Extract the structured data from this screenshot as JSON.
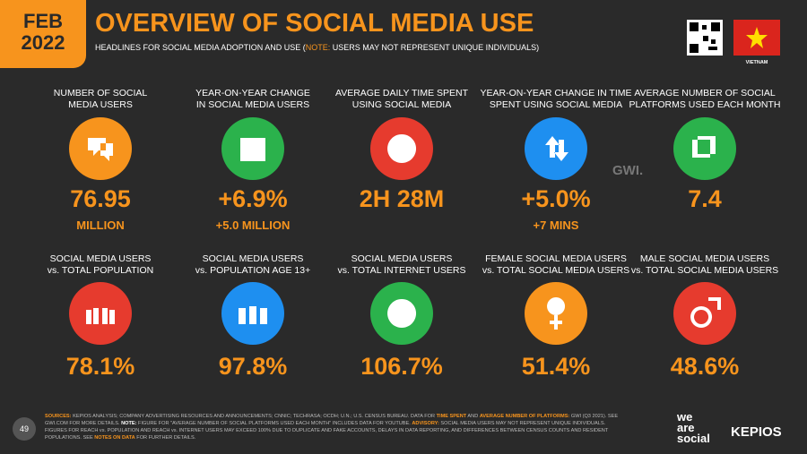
{
  "header": {
    "badge_month": "FEB",
    "badge_year": "2022",
    "title": "OVERVIEW OF SOCIAL MEDIA USE",
    "subtitle": [
      {
        "text": "HEADLINES FOR SOCIAL MEDIA ADOPTION AND USE (",
        "color": "#ffffff"
      },
      {
        "text": "NOTE:",
        "color": "#f7941d"
      },
      {
        "text": " USERS MAY NOT REPRESENT UNIQUE INDIVIDUALS)",
        "color": "#ffffff"
      }
    ],
    "country": "VIETNAM"
  },
  "stats": [
    {
      "label": [
        "NUMBER OF SOCIAL",
        "MEDIA USERS"
      ],
      "value": "76.95",
      "sub": "MILLION",
      "color": "#f7941d"
    },
    {
      "label": [
        "YEAR-ON-YEAR CHANGE",
        "IN SOCIAL MEDIA USERS"
      ],
      "value": "+6.9%",
      "sub": "+5.0 MILLION",
      "color": "#2bb24c"
    },
    {
      "label": [
        "AVERAGE DAILY TIME SPENT",
        "USING SOCIAL MEDIA"
      ],
      "value": "2H 28M",
      "color": "#e63b2e"
    },
    {
      "label": [
        "YEAR-ON-YEAR CHANGE IN TIME",
        "SPENT USING SOCIAL MEDIA"
      ],
      "value": "+5.0%",
      "sub": "+7 MINS",
      "color": "#1e8ff0"
    },
    {
      "label": [
        "AVERAGE NUMBER OF SOCIAL",
        "PLATFORMS USED EACH MONTH"
      ],
      "value": "7.4",
      "color": "#2bb24c"
    },
    {
      "label": [
        "SOCIAL MEDIA USERS",
        "vs. TOTAL POPULATION"
      ],
      "value": "78.1%",
      "color": "#e63b2e"
    },
    {
      "label": [
        "SOCIAL MEDIA USERS",
        "vs. POPULATION AGE 13+"
      ],
      "value": "97.8%",
      "color": "#1e8ff0"
    },
    {
      "label": [
        "SOCIAL MEDIA USERS",
        "vs. TOTAL INTERNET USERS"
      ],
      "value": "106.7%",
      "color": "#2bb24c"
    },
    {
      "label": [
        "FEMALE SOCIAL MEDIA USERS",
        "vs. TOTAL SOCIAL MEDIA USERS"
      ],
      "value": "51.4%",
      "color": "#f7941d"
    },
    {
      "label": [
        "MALE SOCIAL MEDIA USERS",
        "vs. TOTAL SOCIAL MEDIA USERS"
      ],
      "value": "48.6%",
      "color": "#e63b2e"
    }
  ],
  "watermark": "GWI.",
  "footer": {
    "page": "49",
    "sources": [
      {
        "text": "SOURCES:",
        "color": "#f7941d"
      },
      {
        "text": " KEPIOS ANALYSIS; COMPANY ADVERTISING RESOURCES AND ANNOUNCEMENTS; CNNIC; TECHRASA; OCDH; U.N.; U.S. CENSUS BUREAU. DATA FOR ",
        "color": "#bbbbbb"
      },
      {
        "text": "TIME SPENT",
        "color": "#f7941d"
      },
      {
        "text": " AND ",
        "color": "#bbbbbb"
      },
      {
        "text": "AVERAGE NUMBER OF PLATFORMS:",
        "color": "#f7941d"
      },
      {
        "text": " GWI (Q3 2021). SEE GWI.COM FOR MORE DETAILS. ",
        "color": "#bbbbbb"
      },
      {
        "text": "NOTE:",
        "color": "#ffffff"
      },
      {
        "text": " FIGURE FOR \"AVERAGE NUMBER OF SOCIAL PLATFORMS USED EACH MONTH\" INCLUDES DATA FOR YOUTUBE. ",
        "color": "#bbbbbb"
      },
      {
        "text": "ADVISORY:",
        "color": "#f7941d"
      },
      {
        "text": " SOCIAL MEDIA USERS MAY NOT REPRESENT UNIQUE INDIVIDUALS. FIGURES FOR REACH vs. POPULATION AND REACH vs. INTERNET USERS MAY EXCEED 100% DUE TO DUPLICATE AND FAKE ACCOUNTS, DELAYS IN DATA REPORTING, AND DIFFERENCES BETWEEN CENSUS COUNTS AND RESIDENT POPULATIONS. SEE ",
        "color": "#bbbbbb"
      },
      {
        "text": "NOTES ON DATA",
        "color": "#f7941d"
      },
      {
        "text": " FOR FURTHER DETAILS.",
        "color": "#bbbbbb"
      }
    ],
    "brand_lines": [
      "we",
      "are",
      "social"
    ],
    "brand2": "KEPIOS"
  }
}
